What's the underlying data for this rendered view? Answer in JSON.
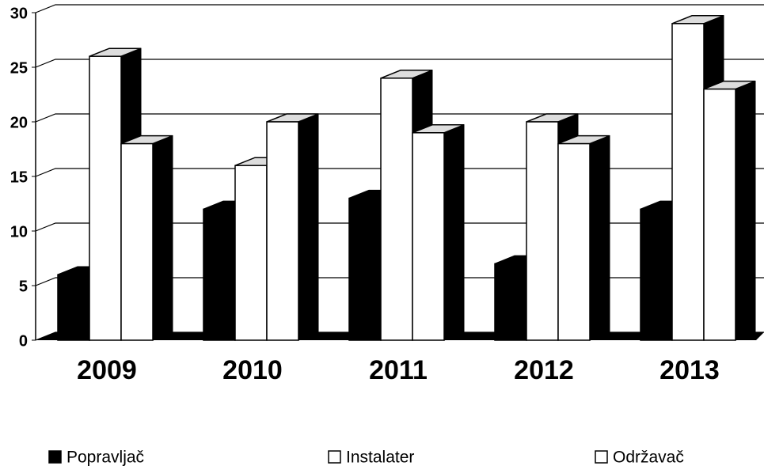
{
  "chart_data": {
    "type": "bar3d",
    "categories": [
      "2009",
      "2010",
      "2011",
      "2012",
      "2013"
    ],
    "series": [
      {
        "name": "Popravljač",
        "color": "#000000",
        "values": [
          6,
          12,
          13,
          7,
          12
        ]
      },
      {
        "name": "Instalater",
        "color": "#ffffff",
        "values": [
          26,
          16,
          24,
          20,
          29
        ]
      },
      {
        "name": "Održavač",
        "color": "#ffffff",
        "values": [
          18,
          20,
          19,
          18,
          23
        ]
      }
    ],
    "ylim": [
      0,
      30
    ],
    "yticks": [
      0,
      5,
      10,
      15,
      20,
      25,
      30
    ],
    "grid": true,
    "legend": "bottom"
  }
}
